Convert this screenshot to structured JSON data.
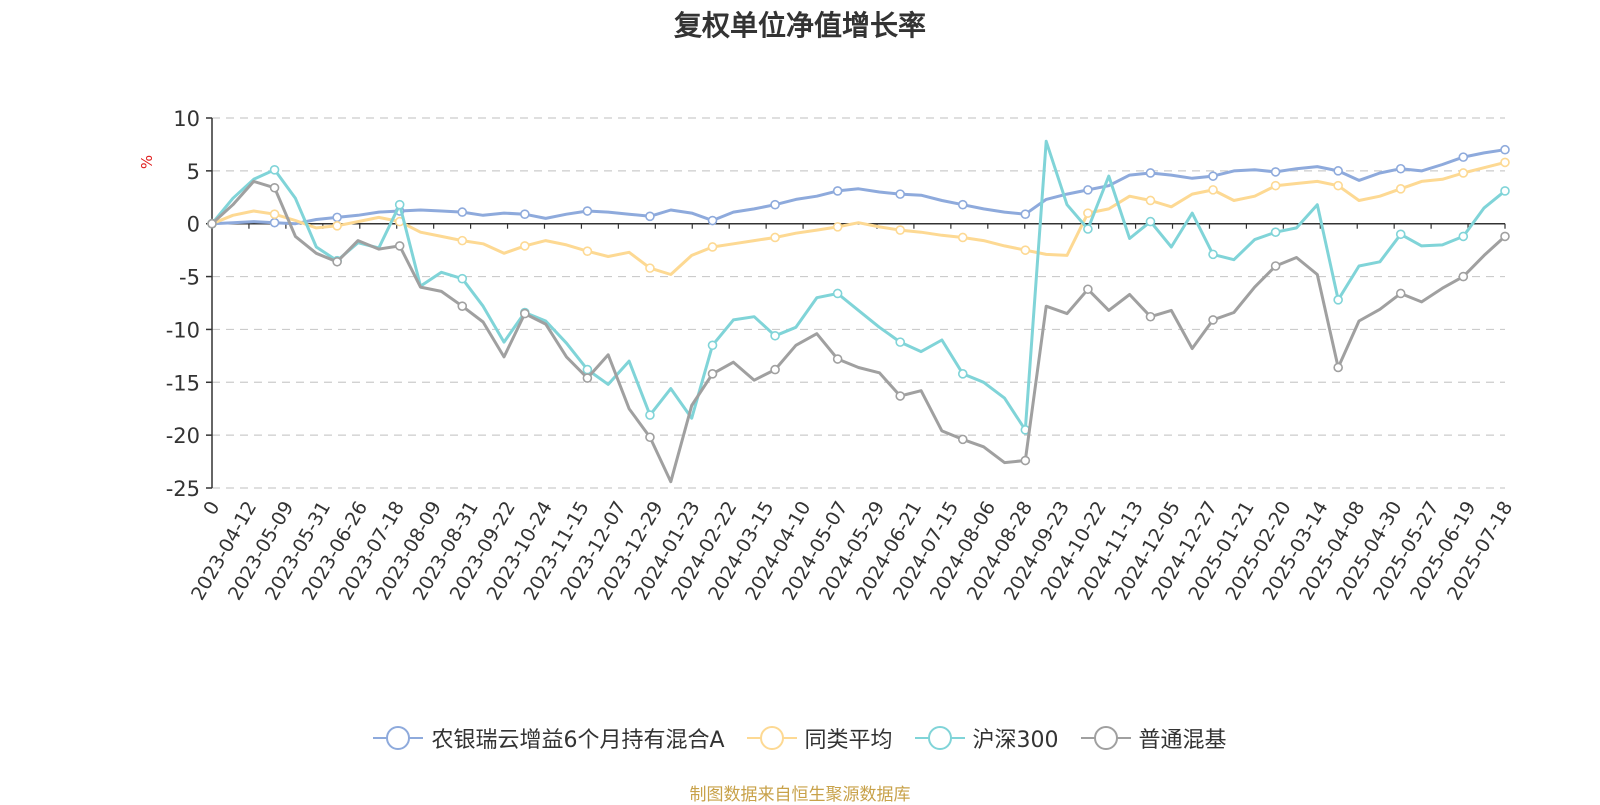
{
  "chart_data": {
    "type": "line",
    "title": "复权单位净值增长率",
    "ylabel": "%",
    "ylim": [
      -25,
      10
    ],
    "y_ticks": [
      10,
      5,
      0,
      -5,
      -10,
      -15,
      -20,
      -25
    ],
    "grid": true,
    "legend_position": "bottom",
    "x_tick_labels": [
      "0",
      "2023-04-12",
      "2023-05-09",
      "2023-05-31",
      "2023-06-26",
      "2023-07-18",
      "2023-08-09",
      "2023-08-31",
      "2023-09-22",
      "2023-10-24",
      "2023-11-15",
      "2023-12-07",
      "2023-12-29",
      "2024-01-23",
      "2024-02-22",
      "2024-03-15",
      "2024-04-10",
      "2024-05-07",
      "2024-05-29",
      "2024-06-21",
      "2024-07-15",
      "2024-08-06",
      "2024-08-28",
      "2024-09-23",
      "2024-10-22",
      "2024-11-13",
      "2024-12-05",
      "2024-12-27",
      "2025-01-21",
      "2025-02-20",
      "2025-03-14",
      "2025-04-08",
      "2025-04-30",
      "2025-05-27",
      "2025-06-19",
      "2025-07-18"
    ],
    "series": [
      {
        "name": "农银瑞云增益6个月持有混合A",
        "color": "#8eaadc",
        "values": [
          0.0,
          0.1,
          0.2,
          0.1,
          0.0,
          0.4,
          0.6,
          0.8,
          1.1,
          1.2,
          1.3,
          1.2,
          1.1,
          0.8,
          1.0,
          0.9,
          0.5,
          0.9,
          1.2,
          1.1,
          0.9,
          0.7,
          1.3,
          1.0,
          0.3,
          1.1,
          1.4,
          1.8,
          2.3,
          2.6,
          3.1,
          3.3,
          3.0,
          2.8,
          2.7,
          2.2,
          1.8,
          1.4,
          1.1,
          0.9,
          2.3,
          2.8,
          3.2,
          3.6,
          4.6,
          4.8,
          4.6,
          4.3,
          4.5,
          5.0,
          5.1,
          4.9,
          5.2,
          5.4,
          5.0,
          4.1,
          4.8,
          5.2,
          5.0,
          5.6,
          6.3,
          6.7,
          7.0
        ]
      },
      {
        "name": "同类平均",
        "color": "#fdd993",
        "values": [
          0.0,
          0.8,
          1.2,
          0.9,
          0.3,
          -0.4,
          -0.2,
          0.2,
          0.6,
          0.2,
          -0.8,
          -1.2,
          -1.6,
          -1.9,
          -2.8,
          -2.1,
          -1.6,
          -2.0,
          -2.6,
          -3.1,
          -2.7,
          -4.2,
          -4.8,
          -3.0,
          -2.2,
          -1.9,
          -1.6,
          -1.3,
          -0.9,
          -0.6,
          -0.3,
          0.1,
          -0.3,
          -0.6,
          -0.8,
          -1.1,
          -1.3,
          -1.6,
          -2.1,
          -2.5,
          -2.9,
          -3.0,
          1.0,
          1.4,
          2.6,
          2.2,
          1.6,
          2.8,
          3.2,
          2.2,
          2.6,
          3.6,
          3.8,
          4.0,
          3.6,
          2.2,
          2.6,
          3.3,
          4.0,
          4.2,
          4.8,
          5.3,
          5.8
        ]
      },
      {
        "name": "沪深300",
        "color": "#80d4d8",
        "values": [
          0.0,
          2.4,
          4.2,
          5.1,
          2.4,
          -2.2,
          -3.5,
          -1.8,
          -2.3,
          1.8,
          -5.9,
          -4.6,
          -5.2,
          -7.8,
          -11.2,
          -8.4,
          -9.2,
          -11.3,
          -13.8,
          -15.2,
          -13.0,
          -18.1,
          -15.6,
          -18.4,
          -11.5,
          -9.1,
          -8.8,
          -10.6,
          -9.8,
          -7.0,
          -6.6,
          -8.2,
          -9.8,
          -11.2,
          -12.1,
          -11.0,
          -14.2,
          -15.0,
          -16.5,
          -19.5,
          7.8,
          1.8,
          -0.5,
          4.5,
          -1.4,
          0.2,
          -2.2,
          1.0,
          -2.9,
          -3.4,
          -1.5,
          -0.8,
          -0.4,
          1.8,
          -7.2,
          -4.0,
          -3.6,
          -1.0,
          -2.1,
          -2.0,
          -1.2,
          1.5,
          3.1
        ]
      },
      {
        "name": "普通混基",
        "color": "#a0a0a0",
        "values": [
          0.0,
          1.8,
          4.0,
          3.4,
          -1.2,
          -2.8,
          -3.6,
          -1.6,
          -2.4,
          -2.1,
          -6.0,
          -6.4,
          -7.8,
          -9.3,
          -12.6,
          -8.5,
          -9.5,
          -12.6,
          -14.6,
          -12.4,
          -17.5,
          -20.2,
          -24.4,
          -17.2,
          -14.2,
          -13.1,
          -14.8,
          -13.8,
          -11.5,
          -10.4,
          -12.8,
          -13.6,
          -14.1,
          -16.3,
          -15.8,
          -19.6,
          -20.4,
          -21.1,
          -22.6,
          -22.4,
          -7.8,
          -8.5,
          -6.2,
          -8.2,
          -6.7,
          -8.8,
          -8.2,
          -11.8,
          -9.1,
          -8.4,
          -6.0,
          -4.0,
          -3.2,
          -4.8,
          -13.6,
          -9.2,
          -8.1,
          -6.6,
          -7.4,
          -6.1,
          -5.0,
          -3.0,
          -1.2
        ]
      }
    ]
  },
  "footer": {
    "source": "制图数据来自恒生聚源数据库"
  }
}
